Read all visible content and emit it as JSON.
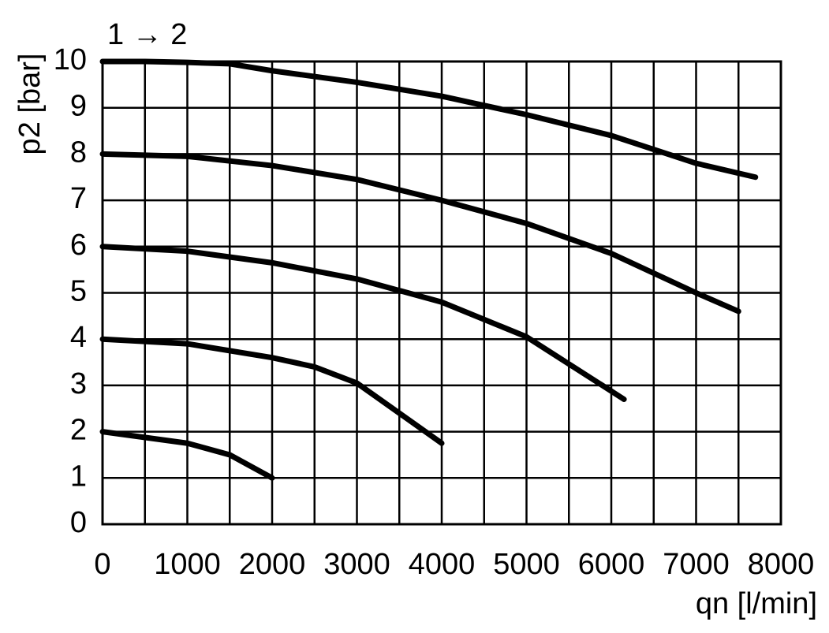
{
  "chart_data": {
    "type": "line",
    "title": "1 → 2",
    "x_label": "qn [l/min]",
    "y_label": "p2 [bar]",
    "xlim": [
      0,
      8000
    ],
    "xticks": [
      0,
      1000,
      2000,
      3000,
      4000,
      5000,
      6000,
      7000,
      8000
    ],
    "x_minor_grid": [
      500,
      1500,
      2500,
      3500,
      4500,
      5500,
      6500,
      7500
    ],
    "ylim": [
      0,
      10
    ],
    "yticks": [
      0,
      1,
      2,
      3,
      4,
      5,
      6,
      7,
      8,
      9,
      10
    ],
    "grid": true,
    "series": [
      {
        "color": "#000000",
        "x": [
          0,
          500,
          1000,
          1500,
          2000,
          3000,
          4000,
          5000,
          6000,
          7000,
          7700
        ],
        "values": [
          10,
          10,
          9.98,
          9.95,
          9.8,
          9.55,
          9.25,
          8.85,
          8.4,
          7.8,
          7.5
        ]
      },
      {
        "color": "#000000",
        "x": [
          0,
          1000,
          2000,
          3000,
          4000,
          5000,
          6000,
          7000,
          7500
        ],
        "values": [
          8,
          7.95,
          7.75,
          7.45,
          7.0,
          6.5,
          5.85,
          5.0,
          4.6
        ]
      },
      {
        "color": "#000000",
        "x": [
          0,
          1000,
          2000,
          3000,
          3500,
          4000,
          5000,
          6150
        ],
        "values": [
          6,
          5.9,
          5.65,
          5.3,
          5.05,
          4.8,
          4.05,
          2.7
        ]
      },
      {
        "color": "#000000",
        "x": [
          0,
          1000,
          2000,
          2500,
          3000,
          3500,
          4000
        ],
        "values": [
          4,
          3.9,
          3.6,
          3.4,
          3.05,
          2.4,
          1.75
        ]
      },
      {
        "color": "#000000",
        "x": [
          0,
          1000,
          1500,
          2000
        ],
        "values": [
          2,
          1.75,
          1.5,
          1.0
        ]
      }
    ]
  }
}
